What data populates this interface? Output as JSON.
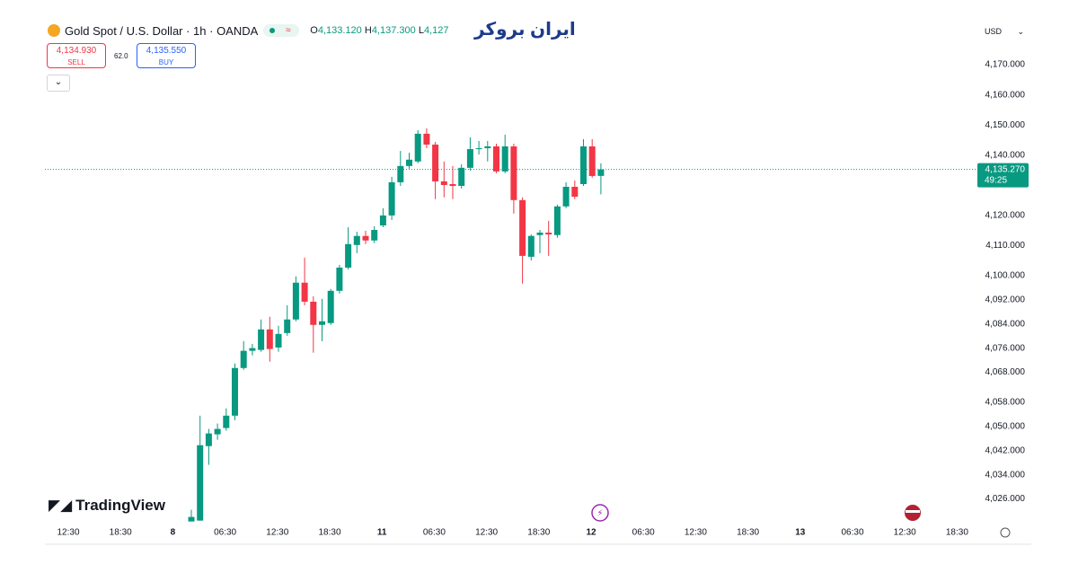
{
  "header": {
    "symbol": "Gold Spot / U.S. Dollar · 1h · OANDA",
    "ohlc": [
      {
        "key": "O",
        "text": "4,133.120"
      },
      {
        "key": "H",
        "text": "4,137.300"
      },
      {
        "key": "L",
        "text": "4,127"
      }
    ],
    "sell_price": "4,134.930",
    "sell_label": "SELL",
    "spread": "62.0",
    "buy_price": "4,135.550",
    "buy_label": "BUY",
    "currency": "USD"
  },
  "logo": "ایران بروکر",
  "watermark": "TradingView",
  "chart_data": {
    "type": "candlestick",
    "up_color": "#089981",
    "down_color": "#f23645",
    "open": [
      4018.5,
      4018.8,
      4043.5,
      4047.4,
      4049.5,
      4053.6,
      4069.4,
      4075.1,
      4075.4,
      4082.2,
      4076.2,
      4081.0,
      4085.5,
      4097.7,
      4091.4,
      4083.7,
      4084.3,
      4095.0,
      4102.7,
      4110.2,
      4113.2,
      4111.7,
      4116.7,
      4120.0,
      4131.0,
      4136.4,
      4137.9,
      4147.1,
      4143.5,
      4131.3,
      4130.4,
      4129.8,
      4135.8,
      4142.0,
      4142.3,
      4142.9,
      4134.6,
      4142.9,
      4125.1,
      4106.3,
      4113.5,
      4114.3,
      4113.5,
      4123.0,
      4129.5,
      4130.4,
      4142.9,
      4133.12
    ],
    "high": [
      4022.4,
      4053.6,
      4049.2,
      4051.0,
      4056.0,
      4070.9,
      4078.3,
      4077.4,
      4085.5,
      4086.4,
      4083.4,
      4090.2,
      4099.8,
      4106.0,
      4093.2,
      4092.3,
      4095.6,
      4103.6,
      4116.1,
      4114.6,
      4114.9,
      4116.4,
      4122.4,
      4132.8,
      4141.4,
      4140.8,
      4148.3,
      4148.9,
      4144.4,
      4137.9,
      4136.4,
      4137.0,
      4145.9,
      4144.7,
      4144.7,
      4143.8,
      4146.8,
      4143.8,
      4126.0,
      4113.7,
      4115.2,
      4118.2,
      4123.6,
      4131.0,
      4131.6,
      4145.3,
      4145.3,
      4137.3
    ],
    "low": [
      4018.5,
      4018.8,
      4037.3,
      4045.6,
      4048.6,
      4052.1,
      4068.8,
      4073.6,
      4074.8,
      4071.5,
      4074.8,
      4080.1,
      4084.9,
      4090.2,
      4074.5,
      4078.3,
      4083.7,
      4094.1,
      4102.1,
      4107.5,
      4110.5,
      4110.8,
      4116.1,
      4118.5,
      4129.8,
      4135.5,
      4137.3,
      4142.3,
      4125.4,
      4126.0,
      4125.4,
      4128.9,
      4134.9,
      4140.2,
      4137.9,
      4134.0,
      4134.0,
      4120.6,
      4097.4,
      4105.1,
      4107.5,
      4106.6,
      4112.6,
      4122.4,
      4125.4,
      4129.8,
      4132.5,
      4127.0
    ],
    "close": [
      4020.0,
      4043.8,
      4047.7,
      4049.2,
      4053.6,
      4069.4,
      4075.1,
      4076.0,
      4082.2,
      4075.7,
      4080.7,
      4085.5,
      4097.7,
      4091.4,
      4083.7,
      4084.9,
      4095.0,
      4102.7,
      4110.5,
      4113.2,
      4111.7,
      4115.2,
      4120.0,
      4131.0,
      4136.4,
      4138.5,
      4147.1,
      4143.5,
      4131.3,
      4130.1,
      4129.8,
      4135.8,
      4142.0,
      4142.3,
      4142.9,
      4134.6,
      4142.9,
      4125.1,
      4106.6,
      4113.2,
      4114.3,
      4113.7,
      4123.0,
      4129.5,
      4126.2,
      4142.9,
      4133.1,
      4135.27
    ],
    "ylim": [
      4018.4,
      4185.5
    ],
    "yticks": [
      {
        "value": 4170,
        "label": "4,170.000"
      },
      {
        "value": 4160,
        "label": "4,160.000"
      },
      {
        "value": 4150,
        "label": "4,150.000"
      },
      {
        "value": 4140,
        "label": "4,140.000"
      },
      {
        "value": 4120,
        "label": "4,120.000"
      },
      {
        "value": 4110,
        "label": "4,110.000"
      },
      {
        "value": 4100,
        "label": "4,100.000"
      },
      {
        "value": 4092,
        "label": "4,092.000"
      },
      {
        "value": 4084,
        "label": "4,084.000"
      },
      {
        "value": 4076,
        "label": "4,076.000"
      },
      {
        "value": 4068,
        "label": "4,068.000"
      },
      {
        "value": 4058,
        "label": "4,058.000"
      },
      {
        "value": 4050,
        "label": "4,050.000"
      },
      {
        "value": 4042,
        "label": "4,042.000"
      },
      {
        "value": 4034,
        "label": "4,034.000"
      },
      {
        "value": 4026,
        "label": "4,026.000"
      }
    ],
    "xticks": [
      "12:30",
      "18:30",
      "8",
      "06:30",
      "12:30",
      "18:30",
      "11",
      "06:30",
      "12:30",
      "18:30",
      "12",
      "06:30",
      "12:30",
      "18:30",
      "13",
      "06:30",
      "12:30",
      "18:30"
    ],
    "last_price": {
      "value": 4135.27,
      "label": "4,135.270"
    },
    "countdown": "49:25"
  }
}
